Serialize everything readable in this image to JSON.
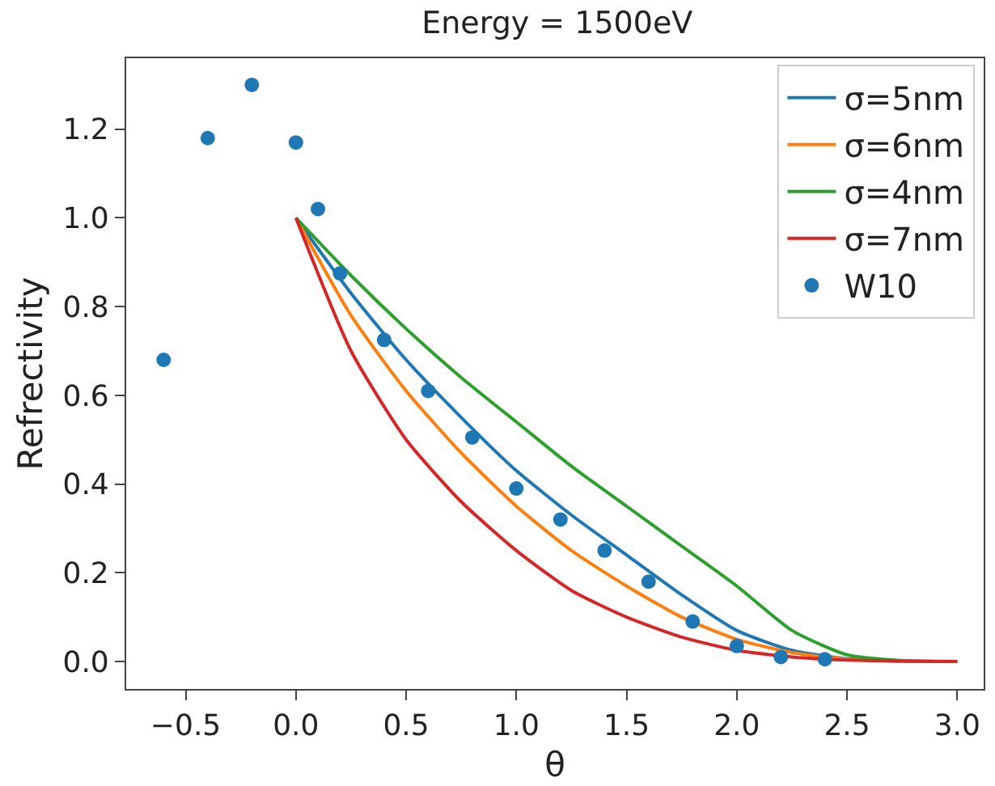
{
  "chart_data": {
    "type": "line",
    "title": "Energy = 1500eV",
    "xlabel": "θ",
    "ylabel": "Refrectivity",
    "xlim": [
      -0.77,
      3.12
    ],
    "ylim": [
      -0.062,
      1.36
    ],
    "xticks": [
      {
        "value": -0.5,
        "label": "−0.5"
      },
      {
        "value": 0,
        "label": "0.0"
      },
      {
        "value": 0.5,
        "label": "0.5"
      },
      {
        "value": 1,
        "label": "1.0"
      },
      {
        "value": 1.5,
        "label": "1.5"
      },
      {
        "value": 2,
        "label": "2.0"
      },
      {
        "value": 2.5,
        "label": "2.5"
      },
      {
        "value": 3,
        "label": "3.0"
      }
    ],
    "yticks": [
      {
        "value": 0,
        "label": "0.0"
      },
      {
        "value": 0.2,
        "label": "0.2"
      },
      {
        "value": 0.4,
        "label": "0.4"
      },
      {
        "value": 0.6,
        "label": "0.6"
      },
      {
        "value": 0.8,
        "label": "0.8"
      },
      {
        "value": 1,
        "label": "1.0"
      },
      {
        "value": 1.2,
        "label": "1.2"
      }
    ],
    "grid": false,
    "legend": "top right",
    "line_style": "solid",
    "series": [
      {
        "name": "σ=5nm",
        "color": "#1f77b4",
        "x": [
          0,
          0.25,
          0.5,
          0.75,
          1,
          1.25,
          1.5,
          1.75,
          2,
          2.25,
          2.5,
          2.75,
          3
        ],
        "values": [
          1,
          0.83,
          0.68,
          0.55,
          0.43,
          0.33,
          0.24,
          0.15,
          0.07,
          0.025,
          0.006,
          0.001,
          0
        ]
      },
      {
        "name": "σ=6nm",
        "color": "#ff7f0e",
        "x": [
          0,
          0.25,
          0.5,
          0.75,
          1,
          1.25,
          1.5,
          1.75,
          2,
          2.25,
          2.5,
          2.75,
          3
        ],
        "values": [
          1,
          0.78,
          0.61,
          0.47,
          0.35,
          0.25,
          0.17,
          0.1,
          0.05,
          0.02,
          0.005,
          0.001,
          0
        ]
      },
      {
        "name": "σ=4nm",
        "color": "#2ca02c",
        "x": [
          0,
          0.25,
          0.5,
          0.75,
          1,
          1.25,
          1.5,
          1.75,
          2,
          2.25,
          2.5,
          2.75,
          3
        ],
        "values": [
          1,
          0.87,
          0.75,
          0.64,
          0.54,
          0.44,
          0.35,
          0.26,
          0.17,
          0.07,
          0.015,
          0.002,
          0
        ]
      },
      {
        "name": "σ=7nm",
        "color": "#d62728",
        "x": [
          0,
          0.25,
          0.5,
          0.75,
          1,
          1.25,
          1.5,
          1.75,
          2,
          2.25,
          2.5,
          2.75,
          3
        ],
        "values": [
          1,
          0.7,
          0.5,
          0.36,
          0.25,
          0.16,
          0.1,
          0.055,
          0.025,
          0.01,
          0.003,
          0.001,
          0
        ]
      },
      {
        "name": "W10",
        "type": "scatter",
        "marker": "circle",
        "color": "#1f77b4",
        "x": [
          -0.6,
          -0.4,
          -0.2,
          0,
          0.1,
          0.2,
          0.4,
          0.6,
          0.8,
          1,
          1.2,
          1.4,
          1.6,
          1.8,
          2,
          2.2,
          2.4
        ],
        "values": [
          0.68,
          1.18,
          1.3,
          1.17,
          1.02,
          0.875,
          0.725,
          0.61,
          0.505,
          0.39,
          0.32,
          0.25,
          0.18,
          0.09,
          0.035,
          0.01,
          0.005
        ]
      }
    ]
  }
}
